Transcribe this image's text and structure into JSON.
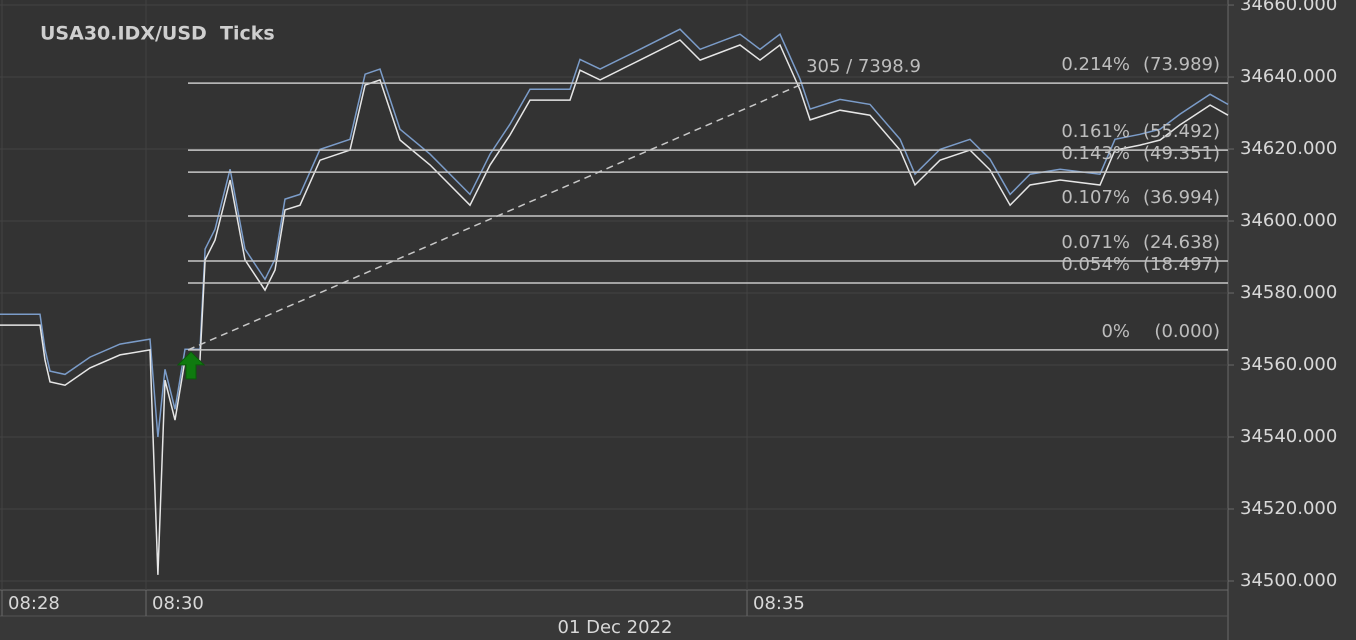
{
  "chart_data": {
    "type": "line",
    "title": "USA30.IDX/USD  Ticks",
    "xlabel": "01 Dec 2022",
    "x": [
      508.802,
      509.135,
      509.176,
      509.218,
      509.343,
      509.551,
      509.8,
      510.05,
      510.116,
      510.175,
      510.258,
      510.341,
      510.466,
      510.508,
      510.591,
      510.716,
      510.84,
      511.007,
      511.09,
      511.173,
      511.298,
      511.464,
      511.714,
      511.839,
      511.963,
      512.13,
      512.379,
      512.712,
      512.879,
      513.045,
      513.211,
      513.544,
      513.627,
      513.794,
      514.126,
      514.459,
      514.626,
      514.958,
      515.125,
      515.291,
      515.458,
      515.541,
      515.79,
      516.04,
      516.29,
      516.414,
      516.622,
      516.872,
      517.038,
      517.205,
      517.371,
      517.621,
      517.953,
      518.078,
      518.286,
      518.453,
      518.619,
      518.869,
      519.018
    ],
    "series": [
      {
        "color": "#7b9cc9",
        "values": [
          34574.1,
          34574.1,
          34564.4,
          34558.3,
          34557.4,
          34562.2,
          34565.8,
          34567.2,
          34540.0,
          34558.8,
          34547.7,
          34564.4,
          34564.4,
          34592.2,
          34597.7,
          34614.4,
          34592.2,
          34583.8,
          34589.4,
          34606.1,
          34607.4,
          34619.9,
          34622.7,
          34640.8,
          34642.2,
          34625.5,
          34618.6,
          34607.4,
          34618.6,
          34626.9,
          34636.6,
          34636.6,
          34644.9,
          34642.2,
          34647.7,
          34653.3,
          34647.7,
          34651.9,
          34647.7,
          34651.9,
          34639.4,
          34631.1,
          34633.8,
          34632.4,
          34622.7,
          34613.0,
          34619.9,
          34622.7,
          34617.2,
          34607.4,
          34613.0,
          34614.4,
          34613.0,
          34622.7,
          34624.1,
          34625.5,
          34629.7,
          34635.2,
          34632.4
        ]
      },
      {
        "color": "#e6e6e6",
        "values": [
          34571.1,
          34571.1,
          34561.4,
          34555.3,
          34554.4,
          34559.2,
          34562.8,
          34564.2,
          34501.7,
          34555.8,
          34544.7,
          34561.4,
          34561.4,
          34589.2,
          34594.7,
          34611.4,
          34589.2,
          34580.8,
          34586.4,
          34603.1,
          34604.4,
          34616.9,
          34619.7,
          34637.8,
          34639.2,
          34622.5,
          34615.6,
          34604.4,
          34615.6,
          34623.9,
          34633.6,
          34633.6,
          34641.9,
          34639.2,
          34644.7,
          34650.3,
          34644.7,
          34648.9,
          34644.7,
          34648.9,
          34636.4,
          34628.1,
          34630.8,
          34629.4,
          34619.7,
          34610.0,
          34616.9,
          34619.7,
          34614.2,
          34604.4,
          34610.0,
          34611.4,
          34610.0,
          34619.7,
          34621.1,
          34622.5,
          34626.7,
          34632.2,
          34629.4
        ]
      }
    ],
    "xlim": [
      508.802,
      519.018
    ],
    "xticks": [
      {
        "value": 508.802,
        "label": "08:28"
      },
      {
        "value": 510,
        "label": "08:30"
      },
      {
        "value": 515,
        "label": "08:35"
      }
    ],
    "ylim": [
      34497.5,
      34661.4
    ],
    "yticks": [
      {
        "value": 34500,
        "label": "34500.000"
      },
      {
        "value": 34520,
        "label": "34520.000"
      },
      {
        "value": 34540,
        "label": "34540.000"
      },
      {
        "value": 34560,
        "label": "34560.000"
      },
      {
        "value": 34580,
        "label": "34580.000"
      },
      {
        "value": 34600,
        "label": "34600.000"
      },
      {
        "value": 34620,
        "label": "34620.000"
      },
      {
        "value": 34640,
        "label": "34640.000"
      },
      {
        "value": 34660,
        "label": "34660.000"
      }
    ],
    "grid": true,
    "fib_start": 510.366,
    "fib_levels": [
      {
        "value": 34638.3,
        "label": "0.214%",
        "amount": "(73.989)"
      },
      {
        "value": 34619.7,
        "label": "0.161%",
        "amount": "(55.492)"
      },
      {
        "value": 34613.6,
        "label": "0.143%",
        "amount": "(49.351)"
      },
      {
        "value": 34601.4,
        "label": "0.107%",
        "amount": "(36.994)"
      },
      {
        "value": 34588.9,
        "label": "0.071%",
        "amount": "(24.638)"
      },
      {
        "value": 34582.8,
        "label": "0.054%",
        "amount": "(18.497)"
      },
      {
        "value": 34564.2,
        "label": "0%",
        "amount": "(0.000)"
      }
    ],
    "trend": {
      "x": [
        510.366,
        515.458
      ],
      "values": [
        34564.2,
        34637.8
      ],
      "label": "305 / 7398.9"
    }
  }
}
